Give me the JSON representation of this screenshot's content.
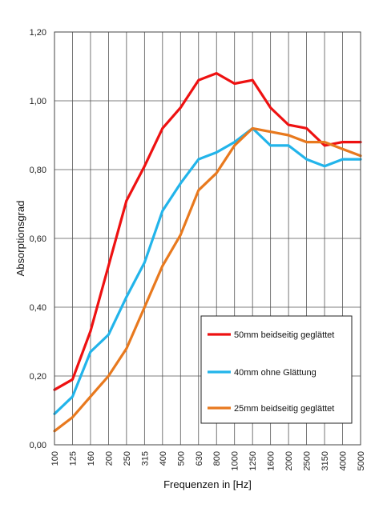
{
  "chart_data": {
    "type": "line",
    "xlabel": "Frequenzen in [Hz]",
    "ylabel": "Absorptionsgrad",
    "categories": [
      "100",
      "125",
      "160",
      "200",
      "250",
      "315",
      "400",
      "500",
      "630",
      "800",
      "1000",
      "1250",
      "1600",
      "2000",
      "2500",
      "3150",
      "4000",
      "5000"
    ],
    "y_ticks": [
      "0,00",
      "0,20",
      "0,40",
      "0,60",
      "0,80",
      "1,00",
      "1,20"
    ],
    "ylim": [
      0,
      1.2
    ],
    "grid": true,
    "legend_position": "bottom-right",
    "series": [
      {
        "name": "50mm beidseitig geglättet",
        "color": "#ee1111",
        "values": [
          0.16,
          0.19,
          0.33,
          0.52,
          0.71,
          0.81,
          0.92,
          0.98,
          1.06,
          1.08,
          1.05,
          1.06,
          0.98,
          0.93,
          0.92,
          0.87,
          0.88,
          0.88
        ]
      },
      {
        "name": "40mm ohne Glättung",
        "color": "#22b4ea",
        "values": [
          0.09,
          0.14,
          0.27,
          0.32,
          0.43,
          0.53,
          0.68,
          0.76,
          0.83,
          0.85,
          0.88,
          0.92,
          0.87,
          0.87,
          0.83,
          0.81,
          0.83,
          0.83
        ]
      },
      {
        "name": "25mm beidseitig geglättet",
        "color": "#e8791e",
        "values": [
          0.04,
          0.08,
          0.14,
          0.2,
          0.28,
          0.4,
          0.52,
          0.61,
          0.74,
          0.79,
          0.87,
          0.92,
          0.91,
          0.9,
          0.88,
          0.88,
          0.86,
          0.84
        ]
      }
    ]
  }
}
